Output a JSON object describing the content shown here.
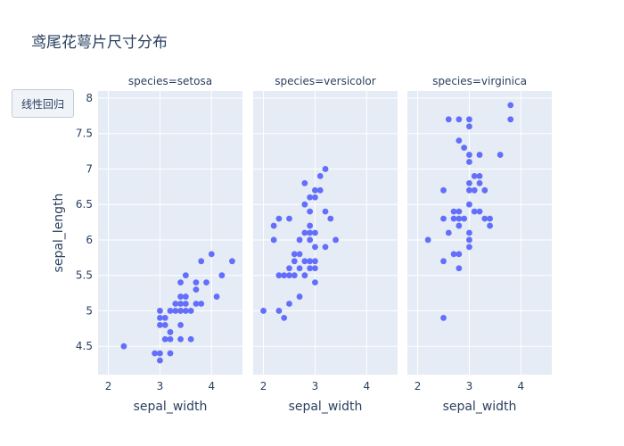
{
  "title": "鸢尾花萼片尺寸分布",
  "menu": {
    "button_label": "线性回归"
  },
  "colors": {
    "plot_bg": "#e5ecf6",
    "grid": "#ffffff",
    "marker": "#636efa",
    "text": "#2a3f5f"
  },
  "chart_data": {
    "type": "scatter",
    "xlabel": "sepal_width",
    "ylabel": "sepal_length",
    "xlim": [
      1.8,
      4.6
    ],
    "ylim": [
      4.1,
      8.1
    ],
    "x_ticks": [
      2,
      3,
      4
    ],
    "y_ticks": [
      4.5,
      5,
      5.5,
      6,
      6.5,
      7,
      7.5,
      8
    ],
    "y_tick_labels": [
      "4.5",
      "5",
      "5.5",
      "6",
      "6.5",
      "7",
      "7.5",
      "8"
    ],
    "grid": true,
    "facets": [
      {
        "label": "species=setosa",
        "points": [
          [
            2.3,
            4.5
          ],
          [
            2.9,
            4.4
          ],
          [
            3.0,
            4.4
          ],
          [
            3.0,
            4.3
          ],
          [
            3.0,
            4.8
          ],
          [
            3.0,
            4.9
          ],
          [
            3.0,
            5.0
          ],
          [
            3.1,
            4.9
          ],
          [
            3.1,
            4.8
          ],
          [
            3.1,
            4.6
          ],
          [
            3.2,
            4.4
          ],
          [
            3.2,
            4.6
          ],
          [
            3.2,
            4.7
          ],
          [
            3.2,
            5.0
          ],
          [
            3.3,
            5.0
          ],
          [
            3.3,
            5.1
          ],
          [
            3.4,
            5.0
          ],
          [
            3.4,
            4.8
          ],
          [
            3.4,
            4.6
          ],
          [
            3.4,
            5.1
          ],
          [
            3.4,
            5.2
          ],
          [
            3.4,
            5.4
          ],
          [
            3.5,
            5.0
          ],
          [
            3.5,
            5.1
          ],
          [
            3.5,
            5.2
          ],
          [
            3.5,
            5.5
          ],
          [
            3.6,
            4.6
          ],
          [
            3.6,
            5.0
          ],
          [
            3.7,
            5.1
          ],
          [
            3.7,
            5.3
          ],
          [
            3.7,
            5.4
          ],
          [
            3.8,
            5.1
          ],
          [
            3.8,
            5.7
          ],
          [
            3.9,
            5.4
          ],
          [
            4.0,
            5.8
          ],
          [
            4.1,
            5.2
          ],
          [
            4.2,
            5.5
          ],
          [
            4.4,
            5.7
          ]
        ]
      },
      {
        "label": "species=versicolor",
        "points": [
          [
            2.0,
            5.0
          ],
          [
            2.2,
            6.0
          ],
          [
            2.2,
            6.2
          ],
          [
            2.3,
            5.0
          ],
          [
            2.3,
            5.5
          ],
          [
            2.3,
            6.3
          ],
          [
            2.4,
            4.9
          ],
          [
            2.4,
            5.5
          ],
          [
            2.5,
            5.1
          ],
          [
            2.5,
            5.5
          ],
          [
            2.5,
            5.6
          ],
          [
            2.5,
            6.3
          ],
          [
            2.6,
            5.5
          ],
          [
            2.6,
            5.7
          ],
          [
            2.6,
            5.8
          ],
          [
            2.7,
            5.2
          ],
          [
            2.7,
            5.6
          ],
          [
            2.7,
            5.8
          ],
          [
            2.7,
            6.0
          ],
          [
            2.8,
            5.7
          ],
          [
            2.8,
            6.1
          ],
          [
            2.8,
            6.5
          ],
          [
            2.8,
            6.8
          ],
          [
            2.9,
            5.6
          ],
          [
            2.9,
            5.7
          ],
          [
            2.9,
            6.0
          ],
          [
            2.9,
            6.1
          ],
          [
            2.9,
            6.2
          ],
          [
            2.9,
            6.4
          ],
          [
            2.9,
            6.6
          ],
          [
            3.0,
            5.4
          ],
          [
            3.0,
            5.6
          ],
          [
            3.0,
            5.7
          ],
          [
            3.0,
            5.9
          ],
          [
            3.0,
            6.1
          ],
          [
            3.0,
            6.6
          ],
          [
            3.0,
            6.7
          ],
          [
            3.1,
            6.7
          ],
          [
            3.1,
            6.9
          ],
          [
            3.2,
            5.9
          ],
          [
            3.2,
            6.4
          ],
          [
            3.2,
            7.0
          ],
          [
            3.3,
            6.3
          ],
          [
            3.4,
            6.0
          ],
          [
            2.8,
            5.5
          ]
        ]
      },
      {
        "label": "species=virginica",
        "points": [
          [
            2.2,
            6.0
          ],
          [
            2.5,
            4.9
          ],
          [
            2.5,
            5.7
          ],
          [
            2.5,
            6.3
          ],
          [
            2.5,
            6.7
          ],
          [
            2.6,
            7.7
          ],
          [
            2.6,
            6.1
          ],
          [
            2.7,
            5.8
          ],
          [
            2.7,
            6.3
          ],
          [
            2.7,
            6.4
          ],
          [
            2.8,
            5.6
          ],
          [
            2.8,
            5.8
          ],
          [
            2.8,
            6.2
          ],
          [
            2.8,
            6.3
          ],
          [
            2.8,
            6.4
          ],
          [
            2.8,
            7.4
          ],
          [
            2.8,
            7.7
          ],
          [
            2.9,
            6.3
          ],
          [
            2.9,
            7.3
          ],
          [
            3.0,
            5.9
          ],
          [
            3.0,
            6.0
          ],
          [
            3.0,
            6.1
          ],
          [
            3.0,
            6.5
          ],
          [
            3.0,
            6.7
          ],
          [
            3.0,
            6.8
          ],
          [
            3.0,
            7.1
          ],
          [
            3.0,
            7.2
          ],
          [
            3.0,
            7.6
          ],
          [
            3.0,
            7.7
          ],
          [
            3.1,
            6.4
          ],
          [
            3.1,
            6.7
          ],
          [
            3.1,
            6.9
          ],
          [
            3.2,
            6.4
          ],
          [
            3.2,
            6.8
          ],
          [
            3.2,
            6.9
          ],
          [
            3.2,
            7.2
          ],
          [
            3.3,
            6.3
          ],
          [
            3.3,
            6.7
          ],
          [
            3.4,
            6.2
          ],
          [
            3.4,
            6.3
          ],
          [
            3.6,
            7.2
          ],
          [
            3.8,
            7.7
          ],
          [
            3.8,
            7.9
          ]
        ]
      }
    ]
  }
}
